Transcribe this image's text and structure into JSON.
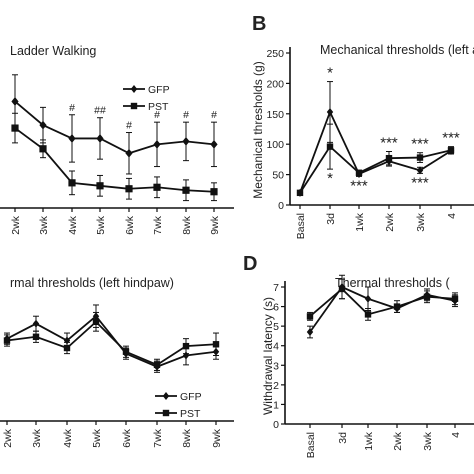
{
  "chart_data": [
    {
      "panel": "",
      "type": "line",
      "title": "Ladder Walking",
      "categories": [
        "2wk",
        "3wk",
        "4wk",
        "5wk",
        "6wk",
        "7wk",
        "8wk",
        "9wk"
      ],
      "series": [
        {
          "name": "GFP",
          "marker": "diamond",
          "values": [
            9.2,
            7.6,
            6.7,
            6.7,
            5.7,
            6.3,
            6.5,
            6.3
          ],
          "errors": [
            1.8,
            1.2,
            1.6,
            1.4,
            1.4,
            1.5,
            1.3,
            1.5
          ]
        },
        {
          "name": "PST",
          "marker": "square",
          "values": [
            7.4,
            6.0,
            3.7,
            3.5,
            3.3,
            3.4,
            3.2,
            3.1
          ],
          "errors": [
            1.0,
            0.6,
            0.8,
            0.7,
            0.7,
            0.7,
            0.7,
            0.6
          ]
        }
      ],
      "annotations": [
        {
          "category": "4wk",
          "text": "#"
        },
        {
          "category": "5wk",
          "text": "##"
        },
        {
          "category": "6wk",
          "text": "#"
        },
        {
          "category": "7wk",
          "text": "#"
        },
        {
          "category": "8wk",
          "text": "#"
        },
        {
          "category": "9wk",
          "text": "#"
        }
      ],
      "legend_position": "top-right"
    },
    {
      "panel": "B",
      "type": "line",
      "title": "Mechanical thresholds (left a",
      "ylabel": "Mechanical thresholds (g)",
      "ylim": [
        0,
        250
      ],
      "yticks": [
        0,
        50,
        100,
        150,
        200,
        250
      ],
      "categories": [
        "Basal",
        "3d",
        "1wk",
        "2wk",
        "3wk",
        "4"
      ],
      "series": [
        {
          "name": "GFP",
          "marker": "diamond",
          "values": [
            20,
            153,
            51,
            72,
            57,
            89
          ],
          "errors": [
            3,
            50,
            4,
            8,
            5,
            5
          ]
        },
        {
          "name": "PST",
          "marker": "square",
          "values": [
            20,
            96,
            53,
            77,
            78,
            90
          ],
          "errors": [
            3,
            37,
            4,
            11,
            8,
            6
          ]
        }
      ],
      "annotations": [
        {
          "category": "3d",
          "text": "*",
          "side": "above"
        },
        {
          "category": "3d",
          "text": "*",
          "side": "below"
        },
        {
          "category": "1wk",
          "text": "***",
          "side": "below"
        },
        {
          "category": "2wk",
          "text": "***",
          "side": "above"
        },
        {
          "category": "3wk",
          "text": "***",
          "side": "above"
        },
        {
          "category": "3wk",
          "text": "***",
          "side": "below"
        },
        {
          "category": "4",
          "text": "***",
          "side": "above"
        }
      ]
    },
    {
      "panel": "",
      "type": "line",
      "title": "rmal thresholds (left hindpaw)",
      "categories": [
        "2wk",
        "3wk",
        "4wk",
        "5wk",
        "6wk",
        "7wk",
        "8wk",
        "9wk"
      ],
      "series": [
        {
          "name": "GFP",
          "marker": "diamond",
          "values": [
            6.4,
            7.2,
            6.3,
            7.6,
            5.6,
            4.9,
            5.5,
            5.7
          ],
          "errors": [
            0.3,
            0.4,
            0.4,
            0.6,
            0.3,
            0.3,
            0.5,
            0.4
          ]
        },
        {
          "name": "PST",
          "marker": "square",
          "values": [
            6.3,
            6.5,
            5.9,
            7.3,
            5.7,
            5.0,
            6.0,
            6.1
          ],
          "errors": [
            0.3,
            0.3,
            0.3,
            0.5,
            0.3,
            0.3,
            0.4,
            0.6
          ]
        }
      ],
      "legend_position": "bottom-right"
    },
    {
      "panel": "D",
      "type": "line",
      "title": "Thermal thresholds (",
      "ylabel": "Withdrawal latency (s)",
      "ylim": [
        0,
        7
      ],
      "yticks": [
        0,
        1,
        2,
        3,
        4,
        5,
        6,
        7
      ],
      "categories": [
        "Basal",
        "3d",
        "1wk",
        "2wk",
        "3wk",
        "4"
      ],
      "series": [
        {
          "name": "GFP",
          "marker": "diamond",
          "values": [
            4.7,
            7.0,
            6.4,
            5.9,
            6.6,
            6.3
          ],
          "errors": [
            0.3,
            0.6,
            0.6,
            0.2,
            0.3,
            0.3
          ]
        },
        {
          "name": "PST",
          "marker": "square",
          "values": [
            5.5,
            6.9,
            5.6,
            6.0,
            6.5,
            6.4
          ],
          "errors": [
            0.2,
            0.5,
            0.3,
            0.3,
            0.3,
            0.3
          ]
        }
      ]
    }
  ]
}
